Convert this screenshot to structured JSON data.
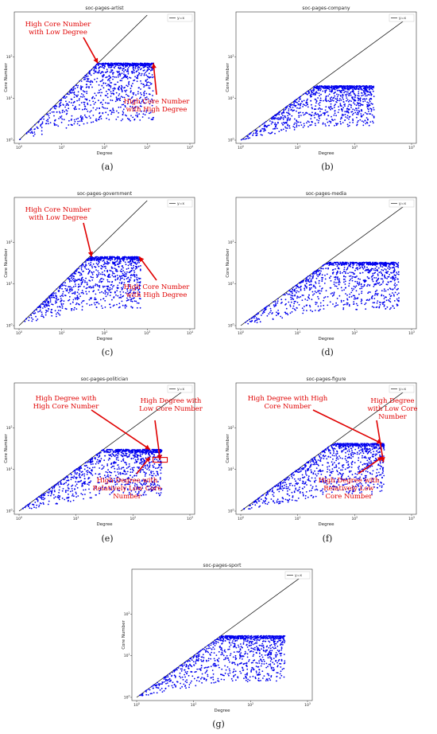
{
  "colors": {
    "points": "#0000ee",
    "annotation": "#e00000",
    "diagonal": "#000000"
  },
  "chart_data": [
    {
      "panel": "(a)",
      "type": "scatter",
      "title": "soc-pages-artist",
      "xlabel": "Degree",
      "ylabel": "Core Number",
      "legend": "y=x",
      "legend_position": "top-right",
      "xscale": "log",
      "yscale": "log",
      "xlim": [
        1,
        10000
      ],
      "ylim": [
        1,
        1000
      ],
      "xmax_degree": 1400,
      "max_core": 70,
      "annotations": [
        {
          "text": [
            "High Core Number",
            "with Low Degree"
          ],
          "at": [
            70,
            70
          ]
        },
        {
          "text": [
            "High Core Number",
            "with High Degree"
          ],
          "at": [
            1400,
            70
          ]
        }
      ]
    },
    {
      "panel": "(b)",
      "type": "scatter",
      "title": "soc-pages-company",
      "xlabel": "Degree",
      "ylabel": "Core Number",
      "legend": "y=x",
      "legend_position": "top-right",
      "xscale": "log",
      "yscale": "log",
      "xlim": [
        1,
        1000
      ],
      "ylim": [
        1,
        1000
      ],
      "xmax_degree": 220,
      "max_core": 20,
      "annotations": []
    },
    {
      "panel": "(c)",
      "type": "scatter",
      "title": "soc-pages-government",
      "xlabel": "Degree",
      "ylabel": "Core Number",
      "legend": "y=x",
      "legend_position": "top-right",
      "xscale": "log",
      "yscale": "log",
      "xlim": [
        1,
        10000
      ],
      "ylim": [
        1,
        1000
      ],
      "xmax_degree": 700,
      "max_core": 45,
      "annotations": [
        {
          "text": [
            "High Core Number",
            "with Low Degree"
          ],
          "at": [
            50,
            45
          ]
        },
        {
          "text": [
            "High Core Number",
            "with High Degree"
          ],
          "at": [
            650,
            45
          ]
        }
      ]
    },
    {
      "panel": "(d)",
      "type": "scatter",
      "title": "soc-pages-media",
      "xlabel": "Degree",
      "ylabel": "Core Number",
      "legend": "y=x",
      "legend_position": "top-right",
      "xscale": "log",
      "yscale": "log",
      "xlim": [
        1,
        1000
      ],
      "ylim": [
        1,
        1000
      ],
      "xmax_degree": 600,
      "max_core": 33,
      "annotations": []
    },
    {
      "panel": "(e)",
      "type": "scatter",
      "title": "soc-pages-politician",
      "xlabel": "Degree",
      "ylabel": "Core Number",
      "legend": "y=x",
      "legend_position": "top-right",
      "xscale": "log",
      "yscale": "log",
      "xlim": [
        1,
        1000
      ],
      "ylim": [
        1,
        1000
      ],
      "xmax_degree": 320,
      "max_core": 30,
      "annotations": [
        {
          "text": [
            "High Degree with",
            "High Core Number"
          ],
          "at": [
            200,
            30
          ]
        },
        {
          "text": [
            "High Degree with",
            "Low Core Number"
          ],
          "at": [
            300,
            17
          ]
        },
        {
          "text": [
            "High Degree with",
            "Relatively Low Core",
            "Number"
          ],
          "at": [
            200,
            20
          ]
        }
      ]
    },
    {
      "panel": "(f)",
      "type": "scatter",
      "title": "soc-pages-figure",
      "xlabel": "Degree",
      "ylabel": "Core Number",
      "legend": "y=x",
      "legend_position": "top-right",
      "xscale": "log",
      "yscale": "log",
      "xlim": [
        1,
        1000
      ],
      "ylim": [
        1,
        1000
      ],
      "xmax_degree": 330,
      "max_core": 42,
      "annotations": [
        {
          "text": [
            "High Degree with High",
            "Core Number"
          ],
          "at": [
            300,
            42
          ]
        },
        {
          "text": [
            "High Degree",
            "with Low  Core",
            "Number"
          ],
          "at": [
            320,
            15
          ]
        },
        {
          "text": [
            "High Degree with",
            "Relatively Low",
            "Core  Number"
          ],
          "at": [
            310,
            20
          ]
        }
      ]
    },
    {
      "panel": "(g)",
      "type": "scatter",
      "title": "soc-pages-sport",
      "xlabel": "Degree",
      "ylabel": "Core Number",
      "legend": "y=x",
      "legend_position": "top-right",
      "xscale": "log",
      "yscale": "log",
      "xlim": [
        1,
        1000
      ],
      "ylim": [
        1,
        1000
      ],
      "xmax_degree": 400,
      "max_core": 30,
      "annotations": []
    }
  ]
}
